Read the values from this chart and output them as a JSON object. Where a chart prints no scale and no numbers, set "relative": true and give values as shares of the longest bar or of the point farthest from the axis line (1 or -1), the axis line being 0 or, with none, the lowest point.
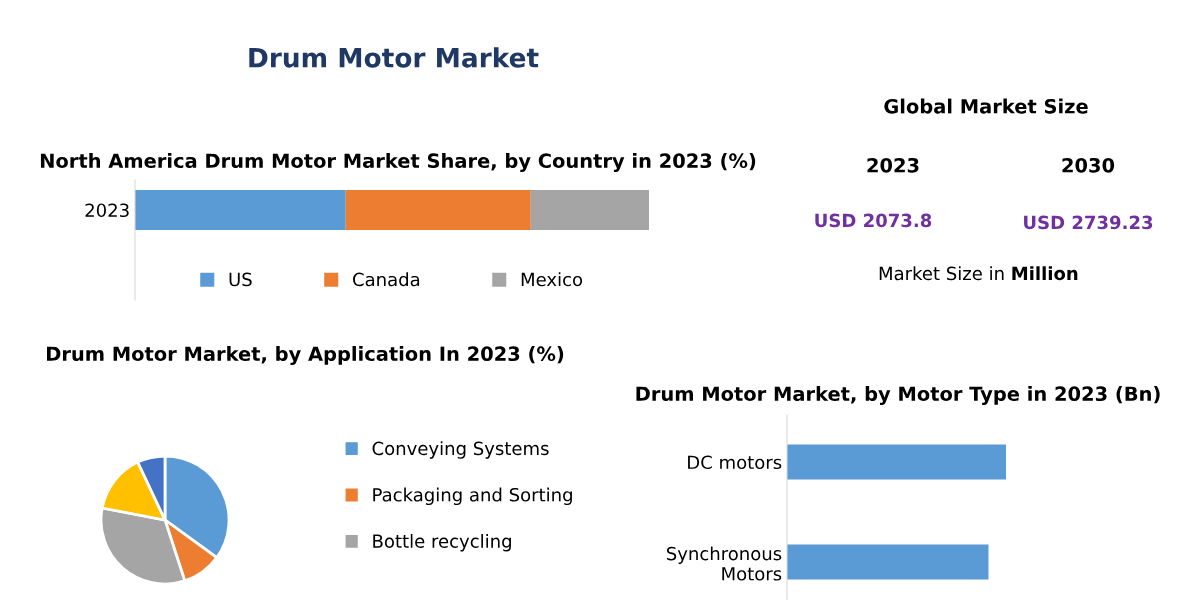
{
  "chart_data": [
    {
      "type": "other",
      "title": "Drum Motor Market",
      "annotations": [
        "Global Market Size",
        "2023",
        "2030",
        "USD 2073.8",
        "USD 2739.23",
        "Market Size in ",
        "Million"
      ]
    },
    {
      "type": "bar",
      "title": "North America Drum Motor Market Share, by Country in 2023 (%)",
      "categories": [
        "2023"
      ],
      "orientation": "horizontal",
      "stacked": true,
      "relative": true,
      "legend": "bottom",
      "series": [
        {
          "name": "US",
          "color": "#5b9bd5",
          "values": [
            0.41
          ]
        },
        {
          "name": "Canada",
          "color": "#ed7d31",
          "values": [
            0.36
          ]
        },
        {
          "name": "Mexico",
          "color": "#a5a5a5",
          "values": [
            0.23
          ]
        }
      ]
    },
    {
      "type": "pie",
      "title": "Drum Motor Market, by Application In 2023 (%)",
      "categories": [
        "Conveying Systems",
        "Packaging and Sorting",
        "Bottle recycling",
        null,
        null
      ],
      "values": [
        35,
        10,
        33,
        15,
        7
      ],
      "colors": [
        "#5b9bd5",
        "#ed7d31",
        "#a5a5a5",
        "#ffc000",
        "#4472c4"
      ],
      "legend": "right"
    },
    {
      "type": "bar",
      "title": "Drum Motor Market, by Motor Type in 2023 (Bn)",
      "categories": [
        "DC motors",
        "Synchronous\nMotors"
      ],
      "orientation": "horizontal",
      "relative": true,
      "values": [
        1,
        0.92
      ],
      "color": "#5b9bd5"
    }
  ]
}
